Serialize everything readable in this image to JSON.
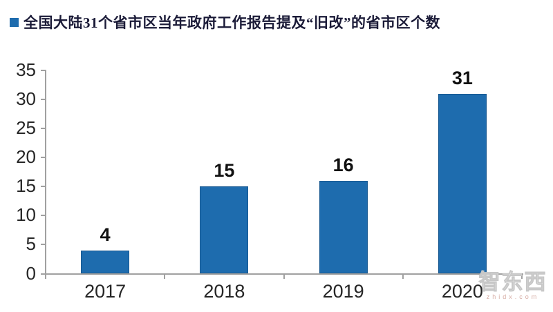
{
  "legend": {
    "label": "全国大陆31个省市区当年政府工作报告提及“旧改”的省市区个数",
    "marker_color": "#1e6cae"
  },
  "chart_data": {
    "type": "bar",
    "title": "全国大陆31个省市区当年政府工作报告提及“旧改”的省市区个数",
    "categories": [
      "2017",
      "2018",
      "2019",
      "2020"
    ],
    "values": [
      4,
      15,
      16,
      31
    ],
    "data_labels": [
      "4",
      "15",
      "16",
      "31"
    ],
    "xlabel": "",
    "ylabel": "",
    "ylim": [
      0,
      35
    ],
    "yticks": [
      0,
      5,
      10,
      15,
      20,
      25,
      30,
      35
    ],
    "grid": false,
    "legend_position": "top-left",
    "bar_color": "#1e6cae",
    "axis_color": "#a0a0a0",
    "label_color": "#262626"
  },
  "watermark": {
    "logo_text": "智东西",
    "url_text": "zhidx.com"
  }
}
